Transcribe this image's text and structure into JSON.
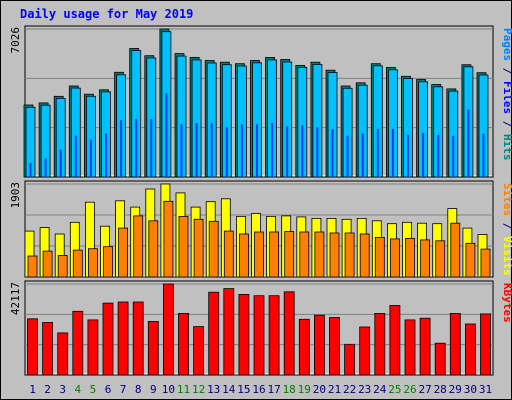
{
  "chart_data": {
    "type": "bar",
    "title": "Daily usage for May 2019",
    "categories": [
      "1",
      "2",
      "3",
      "4",
      "5",
      "6",
      "7",
      "8",
      "9",
      "10",
      "11",
      "12",
      "13",
      "14",
      "15",
      "16",
      "17",
      "18",
      "19",
      "20",
      "21",
      "22",
      "23",
      "24",
      "25",
      "26",
      "27",
      "28",
      "29",
      "30",
      "31"
    ],
    "weekend_days": [
      "4",
      "5",
      "11",
      "12",
      "18",
      "19",
      "25",
      "26"
    ],
    "panels": [
      {
        "id": "hits-files-pages",
        "max_label": "7026",
        "ylim": [
          0,
          7026
        ],
        "axis_title_parts": [
          {
            "text": "Pages",
            "color": "#0080ff"
          },
          {
            "text": " / ",
            "color": "#000080"
          },
          {
            "text": "Files",
            "color": "#0000ff"
          },
          {
            "text": " / ",
            "color": "#000080"
          },
          {
            "text": "Hits",
            "color": "#008080"
          }
        ],
        "series": [
          {
            "name": "Hits",
            "color": "#008080",
            "values": [
              3420,
              3520,
              3830,
              4320,
              3930,
              4140,
              4970,
              6100,
              5760,
              7026,
              5860,
              5680,
              5530,
              5450,
              5380,
              5530,
              5680,
              5580,
              5300,
              5450,
              5070,
              4320,
              4470,
              5380,
              5200,
              4780,
              4630,
              4390,
              4180,
              5330,
              4950
            ]
          },
          {
            "name": "Files",
            "color": "#00c0ff",
            "values": [
              3310,
              3410,
              3730,
              4220,
              3830,
              4040,
              4850,
              6000,
              5650,
              6900,
              5740,
              5560,
              5410,
              5330,
              5270,
              5420,
              5560,
              5460,
              5200,
              5340,
              4960,
              4210,
              4360,
              5280,
              5090,
              4670,
              4520,
              4280,
              4080,
              5230,
              4840
            ]
          },
          {
            "name": "Pages",
            "color": "#0040ff",
            "values": [
              670,
              880,
              1300,
              1960,
              1770,
              2060,
              2700,
              2750,
              2750,
              3980,
              2500,
              2560,
              2560,
              2360,
              2500,
              2500,
              2560,
              2400,
              2450,
              2360,
              2260,
              1960,
              2060,
              2280,
              2280,
              2000,
              2100,
              2000,
              1960,
              3200,
              2060
            ]
          }
        ]
      },
      {
        "id": "visits-sites",
        "max_label": "1903",
        "ylim": [
          0,
          1903
        ],
        "axis_title_parts": [
          {
            "text": "Sites",
            "color": "#ff8000"
          },
          {
            "text": " / ",
            "color": "#000080"
          },
          {
            "text": "Visits",
            "color": "#ffff00"
          }
        ],
        "series": [
          {
            "name": "Visits",
            "color": "#ffff00",
            "values": [
              940,
              1010,
              880,
              1120,
              1530,
              1040,
              1560,
              1430,
              1800,
              1903,
              1720,
              1430,
              1540,
              1600,
              1240,
              1300,
              1240,
              1250,
              1230,
              1200,
              1200,
              1180,
              1200,
              1150,
              1090,
              1120,
              1100,
              1090,
              1400,
              1000,
              870
            ]
          },
          {
            "name": "Sites",
            "color": "#ff8000",
            "values": [
              430,
              530,
              440,
              550,
              580,
              620,
              1000,
              1250,
              1150,
              1550,
              1240,
              1180,
              1140,
              940,
              880,
              920,
              920,
              930,
              920,
              920,
              900,
              900,
              880,
              810,
              780,
              790,
              760,
              740,
              1100,
              690,
              570
            ]
          }
        ]
      },
      {
        "id": "kbytes",
        "max_label": "42117",
        "ylim": [
          0,
          42117
        ],
        "axis_title_parts": [
          {
            "text": "KBytes",
            "color": "#ff0000"
          }
        ],
        "series": [
          {
            "name": "KBytes",
            "color": "#ff0000",
            "values": [
              26000,
              24300,
              19500,
              29500,
              25500,
              33300,
              33800,
              33800,
              24800,
              42117,
              28500,
              22400,
              38300,
              40000,
              37300,
              36700,
              36700,
              38500,
              25800,
              27700,
              26600,
              14200,
              22200,
              28500,
              32200,
              25500,
              26300,
              14700,
              28500,
              23600,
              28300
            ]
          }
        ]
      }
    ]
  }
}
